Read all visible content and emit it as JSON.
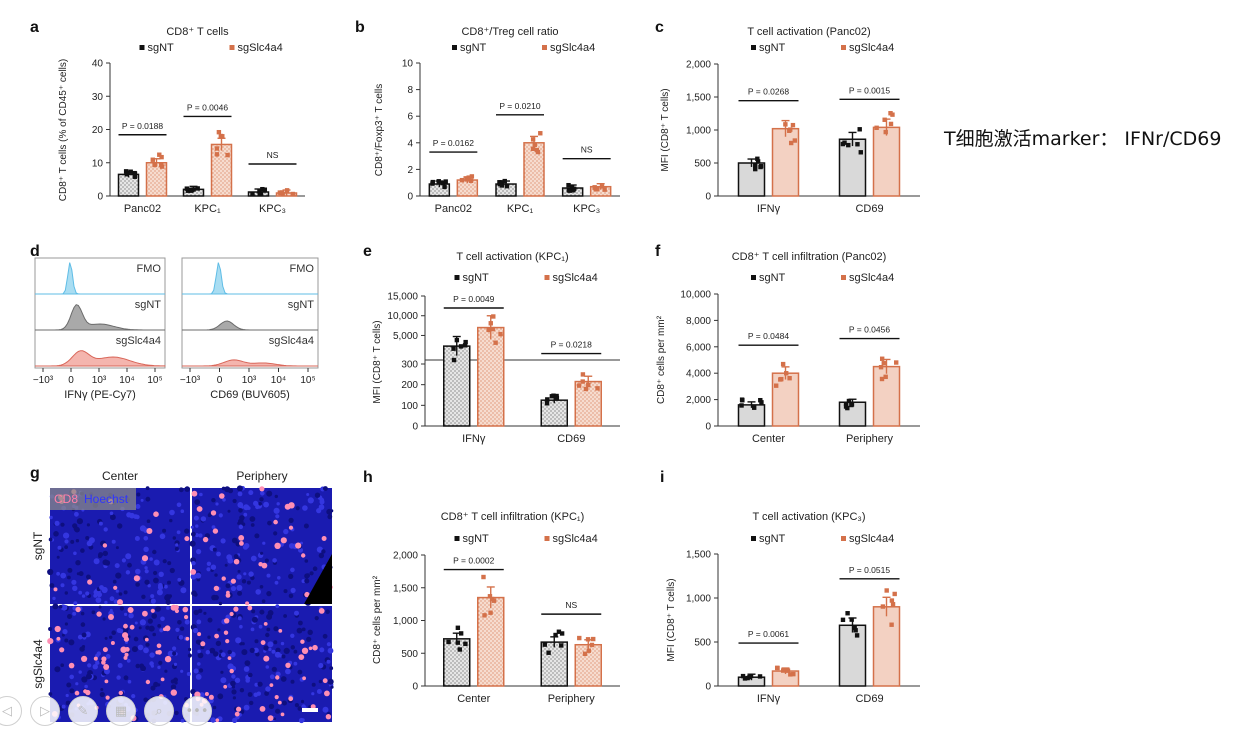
{
  "side_note": "T细胞激活marker： IFNr/CD69",
  "colors": {
    "sgNT": "#111111",
    "sgSlc4a4": "#d4714a",
    "bar_fill_ko": "#f3d1c2",
    "bar_fill_nt": "#d9d9d9"
  },
  "legend": {
    "sgNT": "sgNT",
    "sgSlc4a4": "sgSlc4a4"
  },
  "toolbar": [
    "back-icon",
    "forward-icon",
    "pen-icon",
    "grid-icon",
    "zoom-icon",
    "more-icon"
  ],
  "chart_data": [
    {
      "panel": "a",
      "type": "bar",
      "title": "CD8⁺ T cells",
      "ylabel": "CD8⁺ T cells (% of CD45⁺ cells)",
      "categories": [
        "Panc02",
        "KPC₁",
        "KPC₃"
      ],
      "ylim": [
        0,
        40
      ],
      "yticks": [
        "0",
        "10",
        "20",
        "30",
        "40"
      ],
      "series": [
        {
          "name": "sgNT",
          "values": [
            6.5,
            2,
            1.2
          ]
        },
        {
          "name": "sgSlc4a4",
          "values": [
            10,
            15.5,
            0.9
          ]
        }
      ],
      "annotations": [
        "P = 0.0188",
        "P = 0.0046",
        "NS"
      ]
    },
    {
      "panel": "b",
      "type": "bar",
      "title": "CD8⁺/Treg cell ratio",
      "ylabel": "CD8⁺/Foxp3⁺ T cells",
      "categories": [
        "Panc02",
        "KPC₁",
        "KPC₃"
      ],
      "ylim": [
        0,
        10
      ],
      "yticks": [
        "0",
        "2",
        "4",
        "6",
        "8",
        "10"
      ],
      "series": [
        {
          "name": "sgNT",
          "values": [
            0.9,
            0.9,
            0.6
          ]
        },
        {
          "name": "sgSlc4a4",
          "values": [
            1.2,
            4,
            0.7
          ]
        }
      ],
      "annotations": [
        "P = 0.0162",
        "P = 0.0210",
        "NS"
      ]
    },
    {
      "panel": "c",
      "type": "bar",
      "title": "T cell activation (Panc02)",
      "ylabel": "MFI (CD8⁺ T cells)",
      "categories": [
        "IFNγ",
        "CD69"
      ],
      "ylim": [
        0,
        2000
      ],
      "yticks": [
        "0",
        "500",
        "1,000",
        "1,500",
        "2,000"
      ],
      "series": [
        {
          "name": "sgNT",
          "values": [
            500,
            860
          ]
        },
        {
          "name": "sgSlc4a4",
          "values": [
            1020,
            1040
          ]
        }
      ],
      "annotations": [
        "P = 0.0268",
        "P = 0.0015"
      ]
    },
    {
      "panel": "e",
      "type": "bar",
      "title": "T cell activation (KPC₁)",
      "ylabel": "MFI (CD8⁺ T cells)",
      "categories": [
        "IFNγ",
        "CD69"
      ],
      "ylim": [
        0,
        15000
      ],
      "yticks": [
        "0",
        "100",
        "200",
        "300",
        "5,000",
        "10,000",
        "15,000"
      ],
      "series": [
        {
          "name": "sgNT",
          "values": [
            2300,
            125
          ]
        },
        {
          "name": "sgSlc4a4",
          "values": [
            7000,
            215
          ]
        }
      ],
      "annotations": [
        "P = 0.0049",
        "P = 0.0218"
      ]
    },
    {
      "panel": "f",
      "type": "bar",
      "title": "CD8⁺ T cell infiltration (Panc02)",
      "ylabel": "CD8⁺ cells per mm²",
      "categories": [
        "Center",
        "Periphery"
      ],
      "ylim": [
        0,
        10000
      ],
      "yticks": [
        "0",
        "2,000",
        "4,000",
        "6,000",
        "8,000",
        "10,000"
      ],
      "series": [
        {
          "name": "sgNT",
          "values": [
            1600,
            1800
          ]
        },
        {
          "name": "sgSlc4a4",
          "values": [
            4000,
            4500
          ]
        }
      ],
      "annotations": [
        "P = 0.0484",
        "P = 0.0456"
      ]
    },
    {
      "panel": "h",
      "type": "bar",
      "title": "CD8⁺ T cell infiltration (KPC₁)",
      "ylabel": "CD8⁺ cells per mm²",
      "categories": [
        "Center",
        "Periphery"
      ],
      "ylim": [
        0,
        2000
      ],
      "yticks": [
        "0",
        "500",
        "1,000",
        "1,500",
        "2,000"
      ],
      "series": [
        {
          "name": "sgNT",
          "values": [
            720,
            670
          ]
        },
        {
          "name": "sgSlc4a4",
          "values": [
            1350,
            630
          ]
        }
      ],
      "annotations": [
        "P = 0.0002",
        "NS"
      ]
    },
    {
      "panel": "i",
      "type": "bar",
      "title": "T cell activation (KPC₃)",
      "ylabel": "MFI (CD8⁺ T cells)",
      "categories": [
        "IFNγ",
        "CD69"
      ],
      "ylim": [
        0,
        1500
      ],
      "yticks": [
        "0",
        "500",
        "1,000",
        "1,500"
      ],
      "series": [
        {
          "name": "sgNT",
          "values": [
            100,
            690
          ]
        },
        {
          "name": "sgSlc4a4",
          "values": [
            170,
            900
          ]
        }
      ],
      "annotations": [
        "P = 0.0061",
        "P = 0.0515"
      ]
    }
  ],
  "panel_d": {
    "labels": [
      "FMO",
      "sgNT",
      "sgSlc4a4"
    ],
    "xticks": [
      "−10³",
      "0",
      "10³",
      "10⁴",
      "10⁵"
    ],
    "xlabels": [
      "IFNγ (PE-Cy7)",
      "CD69 (BUV605)"
    ]
  },
  "panel_g": {
    "columns": [
      "Center",
      "Periphery"
    ],
    "rows": [
      "sgNT",
      "sgSlc4a4"
    ],
    "stain_labels": [
      "CD8",
      "Hoechst"
    ]
  }
}
